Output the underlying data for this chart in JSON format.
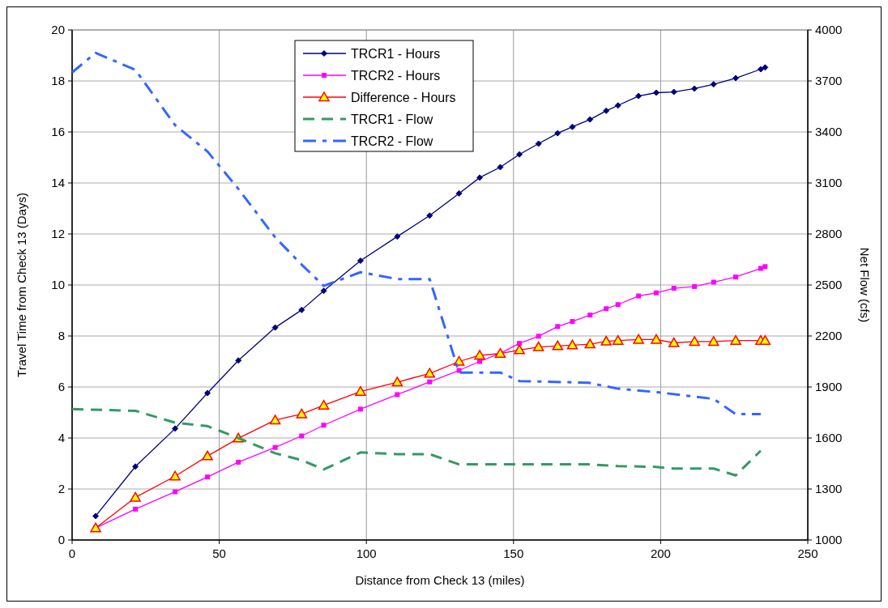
{
  "chart_data": {
    "type": "line",
    "xlabel": "Distance from Check 13 (miles)",
    "ylabel": "Travel Time from Check 13 (Days)",
    "y2label": "Net Flow  (cfs)",
    "x": [
      8,
      21.5,
      35,
      46,
      56.5,
      69,
      78,
      85.5,
      98,
      110.5,
      121.5,
      131.5,
      138.5,
      145.5,
      152,
      158.5,
      165,
      170,
      176,
      181.5,
      185.5,
      192.5,
      198.5,
      204.5,
      211.5,
      218,
      225.5,
      234,
      235.5
    ],
    "series": [
      {
        "name": "TRCR1 - Hours",
        "color": "#000080",
        "marker": "diamond",
        "line_style": "solid",
        "values": [
          0.94,
          2.88,
          4.37,
          5.76,
          7.04,
          8.33,
          9.02,
          9.77,
          10.95,
          11.9,
          12.72,
          13.59,
          14.21,
          14.62,
          15.12,
          15.54,
          15.95,
          16.2,
          16.49,
          16.83,
          17.04,
          17.41,
          17.54,
          17.57,
          17.7,
          17.87,
          18.11,
          18.46,
          18.53
        ]
      },
      {
        "name": "TRCR2 - Hours",
        "color": "#ff00ff",
        "marker": "square",
        "line_style": "solid",
        "values": [
          0.47,
          1.21,
          1.89,
          2.47,
          3.05,
          3.63,
          4.08,
          4.5,
          5.13,
          5.7,
          6.2,
          6.65,
          7.0,
          7.32,
          7.71,
          7.99,
          8.37,
          8.57,
          8.82,
          9.07,
          9.23,
          9.57,
          9.69,
          9.87,
          9.94,
          10.11,
          10.31,
          10.65,
          10.72
        ]
      },
      {
        "name": "Difference - Hours",
        "color": "#ff0000",
        "marker": "triangle",
        "line_style": "solid",
        "values": [
          0.47,
          1.67,
          2.5,
          3.29,
          3.99,
          4.7,
          4.94,
          5.28,
          5.82,
          6.19,
          6.53,
          7.0,
          7.24,
          7.31,
          7.45,
          7.57,
          7.61,
          7.64,
          7.68,
          7.79,
          7.82,
          7.86,
          7.86,
          7.73,
          7.78,
          7.78,
          7.82,
          7.82,
          7.82
        ]
      },
      {
        "name": "TRCR1 - Flow",
        "color": "#339966",
        "marker": "none",
        "line_style": "dashed",
        "axis": "y2",
        "x": [
          0,
          21.5,
          35,
          46,
          56.5,
          69,
          78,
          85.5,
          98,
          110.5,
          121.5,
          131.5,
          175.5,
          185.5,
          198.5,
          204.5,
          218,
          225.5,
          234
        ],
        "values": [
          1770,
          1760,
          1690,
          1670,
          1600,
          1510,
          1470,
          1415,
          1515,
          1505,
          1505,
          1445,
          1445,
          1435,
          1430,
          1420,
          1420,
          1380,
          1525
        ]
      },
      {
        "name": "TRCR2 - Flow",
        "color": "#3366ff",
        "marker": "none",
        "line_style": "dashdot",
        "axis": "y2",
        "x": [
          0,
          8,
          21.5,
          35,
          46,
          56.5,
          69,
          78,
          85.5,
          98,
          110.5,
          121.5,
          131.5,
          145.5,
          152,
          175.5,
          185.5,
          198.5,
          218,
          225.5,
          234
        ],
        "values": [
          3750,
          3865,
          3765,
          3440,
          3285,
          3065,
          2780,
          2620,
          2495,
          2575,
          2535,
          2535,
          1985,
          1985,
          1935,
          1925,
          1890,
          1870,
          1830,
          1740,
          1740
        ]
      }
    ],
    "xlim": [
      0,
      250
    ],
    "xticks": [
      0,
      50,
      100,
      150,
      200,
      250
    ],
    "ylim": [
      0,
      20
    ],
    "yticks": [
      0,
      2,
      4,
      6,
      8,
      10,
      12,
      14,
      16,
      18,
      20
    ],
    "y2lim": [
      1000,
      4000
    ],
    "y2ticks": [
      1000,
      1300,
      1600,
      1900,
      2200,
      2500,
      2800,
      3100,
      3400,
      3700,
      4000
    ],
    "grid": true,
    "legend": "top"
  }
}
